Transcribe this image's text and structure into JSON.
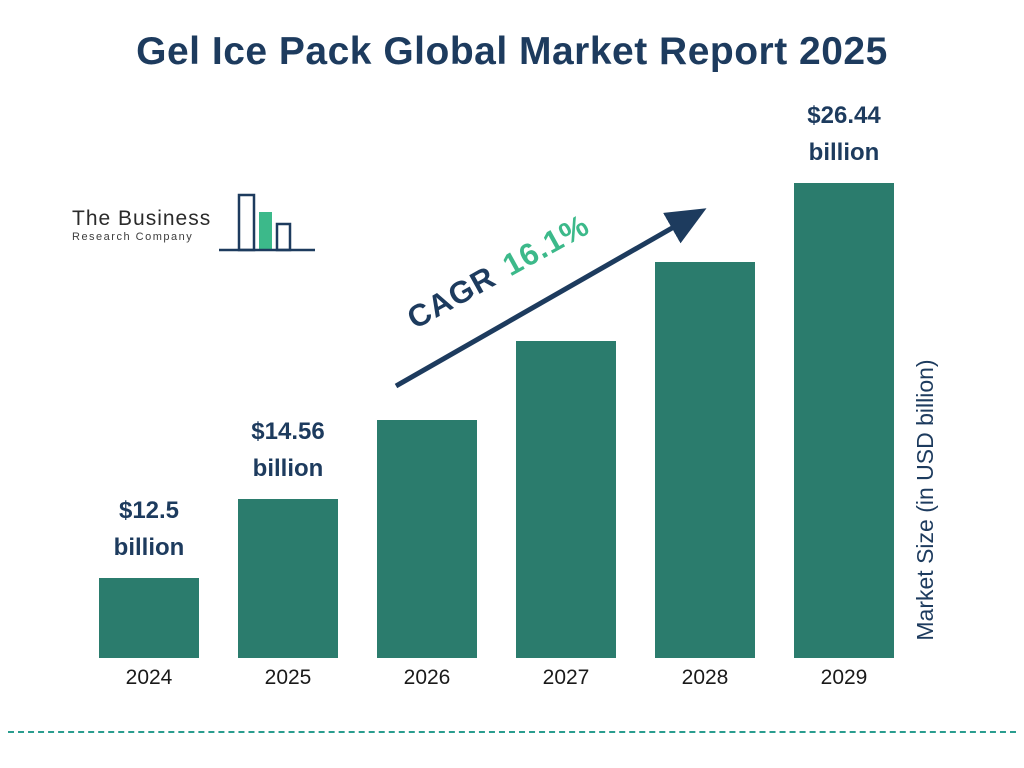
{
  "title": "Gel Ice Pack Global Market Report 2025",
  "logo": {
    "line1": "The Business",
    "line2": "Research Company"
  },
  "cagr": {
    "prefix": "CAGR",
    "value": "16.1%"
  },
  "colors": {
    "navy": "#1d3b5e",
    "teal": "#2b7c6d",
    "green": "#3cb98a",
    "dash": "#2a9d8f"
  },
  "chart_data": {
    "type": "bar",
    "title": "Gel Ice Pack Global Market Report 2025",
    "categories": [
      "2024",
      "2025",
      "2026",
      "2027",
      "2028",
      "2029"
    ],
    "values": [
      12.5,
      14.56,
      16.9,
      19.63,
      22.79,
      26.44
    ],
    "labels": [
      "$12.5",
      "$14.56",
      null,
      null,
      null,
      "$26.44"
    ],
    "label_unit": "billion",
    "value_unit": "USD billion",
    "xlabel": "",
    "ylabel": "Market Size (in USD billion)",
    "cagr_percent": 16.1,
    "bar_color": "#2b7c6d",
    "gridlines": false,
    "legend": false
  }
}
